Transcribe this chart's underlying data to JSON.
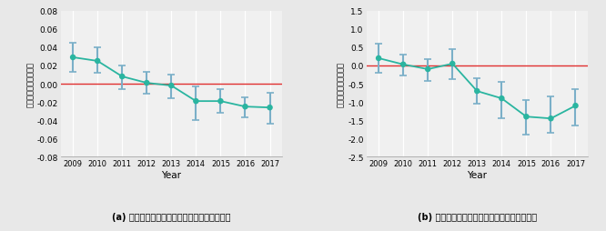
{
  "panel_a": {
    "years": [
      2009,
      2010,
      2011,
      2012,
      2013,
      2014,
      2015,
      2016,
      2017
    ],
    "values": [
      0.029,
      0.025,
      0.008,
      0.001,
      -0.002,
      -0.019,
      -0.019,
      -0.025,
      -0.026
    ],
    "err_lo": [
      0.016,
      0.013,
      0.014,
      0.012,
      0.014,
      0.021,
      0.013,
      0.012,
      0.018
    ],
    "err_hi": [
      0.016,
      0.015,
      0.012,
      0.012,
      0.012,
      0.016,
      0.013,
      0.01,
      0.016
    ],
    "ylim": [
      -0.08,
      0.08
    ],
    "yticks": [
      -0.08,
      -0.06,
      -0.04,
      -0.02,
      0.0,
      0.02,
      0.04,
      0.06,
      0.08
    ],
    "ytick_labels": [
      "-0.08",
      "-0.06",
      "-0.04",
      "-0.02",
      "0.00",
      "0.02",
      "0.04",
      "0.06",
      "0.08"
    ],
    "ylabel": "回帰分析の係数推定値",
    "xlabel": "Year",
    "caption": "(a) 外国人宿泊需要から国内宿泊需要への影響"
  },
  "panel_b": {
    "years": [
      2009,
      2010,
      2011,
      2012,
      2013,
      2014,
      2015,
      2016,
      2017
    ],
    "values": [
      0.2,
      0.03,
      -0.1,
      0.05,
      -0.7,
      -0.9,
      -1.4,
      -1.45,
      -1.1
    ],
    "err_lo": [
      0.4,
      0.3,
      0.32,
      0.42,
      0.35,
      0.55,
      0.5,
      0.4,
      0.55
    ],
    "err_hi": [
      0.4,
      0.28,
      0.28,
      0.4,
      0.35,
      0.45,
      0.45,
      0.6,
      0.45
    ],
    "ylim": [
      -2.5,
      1.5
    ],
    "yticks": [
      -2.5,
      -2.0,
      -1.5,
      -1.0,
      -0.5,
      0.0,
      0.5,
      1.0,
      1.5
    ],
    "ytick_labels": [
      "-2.5",
      "-2.0",
      "-1.5",
      "-1.0",
      "-0.5",
      "0.0",
      "0.5",
      "1.0",
      "1.5"
    ],
    "ylabel": "回帰分析の係数推定値",
    "xlabel": "Year",
    "caption": "(b) 国内宿泊需要から外国人宿泊需要への影響"
  },
  "line_color": "#2ab5a0",
  "marker_color": "#2ab5a0",
  "errorbar_color": "#7aafc8",
  "ref_line_color": "#e03030",
  "bg_color": "#e8e8e8",
  "plot_bg_color": "#f0f0f0"
}
